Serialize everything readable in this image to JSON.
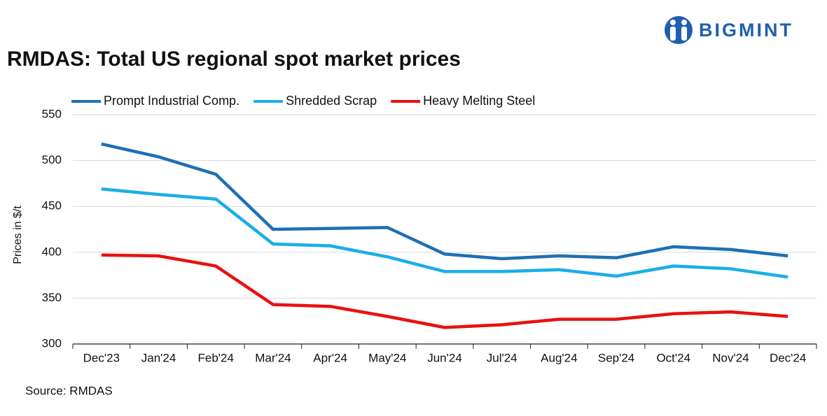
{
  "logo": "BIGMINT",
  "chart_data": {
    "type": "line",
    "title": "RMDAS: Total US regional spot market prices",
    "y_label": "Prices in $/t",
    "source": "Source: RMDAS",
    "categories": [
      "Dec'23",
      "Jan'24",
      "Feb'24",
      "Mar'24",
      "Apr'24",
      "May'24",
      "Jun'24",
      "Jul'24",
      "Aug'24",
      "Sep'24",
      "Oct'24",
      "Nov'24",
      "Dec'24"
    ],
    "series": [
      {
        "name": "Prompt Industrial Comp.",
        "color": "#1f6fb5",
        "values": [
          518,
          504,
          485,
          425,
          426,
          427,
          398,
          393,
          396,
          394,
          406,
          403,
          396
        ]
      },
      {
        "name": "Shredded Scrap",
        "color": "#1aaee8",
        "values": [
          469,
          463,
          458,
          409,
          407,
          395,
          379,
          379,
          381,
          374,
          385,
          382,
          373
        ]
      },
      {
        "name": "Heavy Melting Steel",
        "color": "#e8110f",
        "values": [
          397,
          396,
          385,
          343,
          341,
          330,
          318,
          321,
          327,
          327,
          333,
          335,
          330
        ]
      }
    ],
    "ylim": [
      300,
      550
    ],
    "yticks": [
      300,
      350,
      400,
      450,
      500,
      550
    ],
    "grid": true
  }
}
